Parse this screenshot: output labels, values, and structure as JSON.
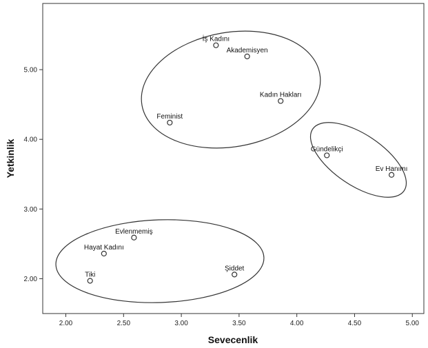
{
  "chart_data": {
    "type": "scatter",
    "xlabel": "Sevecenlik",
    "ylabel": "Yetkinlik",
    "xlim": [
      1.8,
      5.1
    ],
    "ylim": [
      1.5,
      5.95
    ],
    "x_ticks": [
      "2.00",
      "2.50",
      "3.00",
      "3.50",
      "4.00",
      "4.50",
      "5.00"
    ],
    "x_tick_values": [
      2.0,
      2.5,
      3.0,
      3.5,
      4.0,
      4.5,
      5.0
    ],
    "y_ticks": [
      "2.00",
      "3.00",
      "4.00",
      "5.00"
    ],
    "y_tick_values": [
      2.0,
      3.0,
      4.0,
      5.0
    ],
    "grid": false,
    "points": [
      {
        "label": "İş Kadını",
        "x": 3.3,
        "y": 5.35
      },
      {
        "label": "Akademisyen",
        "x": 3.57,
        "y": 5.19
      },
      {
        "label": "Kadın Hakları",
        "x": 3.86,
        "y": 4.55
      },
      {
        "label": "Feminist",
        "x": 2.9,
        "y": 4.24
      },
      {
        "label": "Gündelikçi",
        "x": 4.26,
        "y": 3.77
      },
      {
        "label": "Ev Hanımı",
        "x": 4.82,
        "y": 3.49
      },
      {
        "label": "Evlenmemiş",
        "x": 2.59,
        "y": 2.59
      },
      {
        "label": "Hayat Kadını",
        "x": 2.33,
        "y": 2.36
      },
      {
        "label": "Tiki",
        "x": 2.21,
        "y": 1.97
      },
      {
        "label": "Şiddet",
        "x": 3.46,
        "y": 2.06
      }
    ],
    "colors": {
      "point_stroke": "#333333",
      "point_fill": "#ffffff",
      "ellipse_stroke": "#333333"
    }
  }
}
